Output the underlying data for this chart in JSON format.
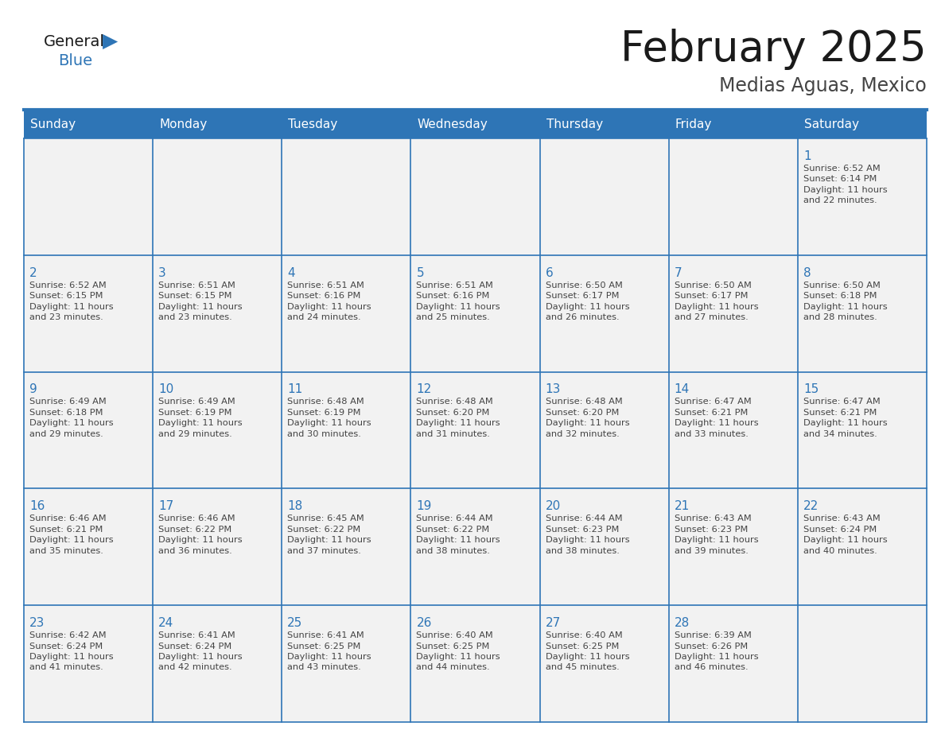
{
  "title": "February 2025",
  "subtitle": "Medias Aguas, Mexico",
  "header_bg": "#2E75B6",
  "header_text_color": "#FFFFFF",
  "cell_bg": "#F2F2F2",
  "day_headers": [
    "Sunday",
    "Monday",
    "Tuesday",
    "Wednesday",
    "Thursday",
    "Friday",
    "Saturday"
  ],
  "title_color": "#1a1a1a",
  "subtitle_color": "#444444",
  "day_num_color": "#2E75B6",
  "cell_text_color": "#444444",
  "border_color": "#2E75B6",
  "logo_general_color": "#1a1a1a",
  "logo_blue_color": "#2E75B6",
  "weeks": [
    [
      {
        "day": null
      },
      {
        "day": null
      },
      {
        "day": null
      },
      {
        "day": null
      },
      {
        "day": null
      },
      {
        "day": null
      },
      {
        "day": 1,
        "sunrise": "6:52 AM",
        "sunset": "6:14 PM",
        "daylight": "11 hours and 22 minutes."
      }
    ],
    [
      {
        "day": 2,
        "sunrise": "6:52 AM",
        "sunset": "6:15 PM",
        "daylight": "11 hours and 23 minutes."
      },
      {
        "day": 3,
        "sunrise": "6:51 AM",
        "sunset": "6:15 PM",
        "daylight": "11 hours and 23 minutes."
      },
      {
        "day": 4,
        "sunrise": "6:51 AM",
        "sunset": "6:16 PM",
        "daylight": "11 hours and 24 minutes."
      },
      {
        "day": 5,
        "sunrise": "6:51 AM",
        "sunset": "6:16 PM",
        "daylight": "11 hours and 25 minutes."
      },
      {
        "day": 6,
        "sunrise": "6:50 AM",
        "sunset": "6:17 PM",
        "daylight": "11 hours and 26 minutes."
      },
      {
        "day": 7,
        "sunrise": "6:50 AM",
        "sunset": "6:17 PM",
        "daylight": "11 hours and 27 minutes."
      },
      {
        "day": 8,
        "sunrise": "6:50 AM",
        "sunset": "6:18 PM",
        "daylight": "11 hours and 28 minutes."
      }
    ],
    [
      {
        "day": 9,
        "sunrise": "6:49 AM",
        "sunset": "6:18 PM",
        "daylight": "11 hours and 29 minutes."
      },
      {
        "day": 10,
        "sunrise": "6:49 AM",
        "sunset": "6:19 PM",
        "daylight": "11 hours and 29 minutes."
      },
      {
        "day": 11,
        "sunrise": "6:48 AM",
        "sunset": "6:19 PM",
        "daylight": "11 hours and 30 minutes."
      },
      {
        "day": 12,
        "sunrise": "6:48 AM",
        "sunset": "6:20 PM",
        "daylight": "11 hours and 31 minutes."
      },
      {
        "day": 13,
        "sunrise": "6:48 AM",
        "sunset": "6:20 PM",
        "daylight": "11 hours and 32 minutes."
      },
      {
        "day": 14,
        "sunrise": "6:47 AM",
        "sunset": "6:21 PM",
        "daylight": "11 hours and 33 minutes."
      },
      {
        "day": 15,
        "sunrise": "6:47 AM",
        "sunset": "6:21 PM",
        "daylight": "11 hours and 34 minutes."
      }
    ],
    [
      {
        "day": 16,
        "sunrise": "6:46 AM",
        "sunset": "6:21 PM",
        "daylight": "11 hours and 35 minutes."
      },
      {
        "day": 17,
        "sunrise": "6:46 AM",
        "sunset": "6:22 PM",
        "daylight": "11 hours and 36 minutes."
      },
      {
        "day": 18,
        "sunrise": "6:45 AM",
        "sunset": "6:22 PM",
        "daylight": "11 hours and 37 minutes."
      },
      {
        "day": 19,
        "sunrise": "6:44 AM",
        "sunset": "6:22 PM",
        "daylight": "11 hours and 38 minutes."
      },
      {
        "day": 20,
        "sunrise": "6:44 AM",
        "sunset": "6:23 PM",
        "daylight": "11 hours and 38 minutes."
      },
      {
        "day": 21,
        "sunrise": "6:43 AM",
        "sunset": "6:23 PM",
        "daylight": "11 hours and 39 minutes."
      },
      {
        "day": 22,
        "sunrise": "6:43 AM",
        "sunset": "6:24 PM",
        "daylight": "11 hours and 40 minutes."
      }
    ],
    [
      {
        "day": 23,
        "sunrise": "6:42 AM",
        "sunset": "6:24 PM",
        "daylight": "11 hours and 41 minutes."
      },
      {
        "day": 24,
        "sunrise": "6:41 AM",
        "sunset": "6:24 PM",
        "daylight": "11 hours and 42 minutes."
      },
      {
        "day": 25,
        "sunrise": "6:41 AM",
        "sunset": "6:25 PM",
        "daylight": "11 hours and 43 minutes."
      },
      {
        "day": 26,
        "sunrise": "6:40 AM",
        "sunset": "6:25 PM",
        "daylight": "11 hours and 44 minutes."
      },
      {
        "day": 27,
        "sunrise": "6:40 AM",
        "sunset": "6:25 PM",
        "daylight": "11 hours and 45 minutes."
      },
      {
        "day": 28,
        "sunrise": "6:39 AM",
        "sunset": "6:26 PM",
        "daylight": "11 hours and 46 minutes."
      },
      {
        "day": null
      }
    ]
  ]
}
